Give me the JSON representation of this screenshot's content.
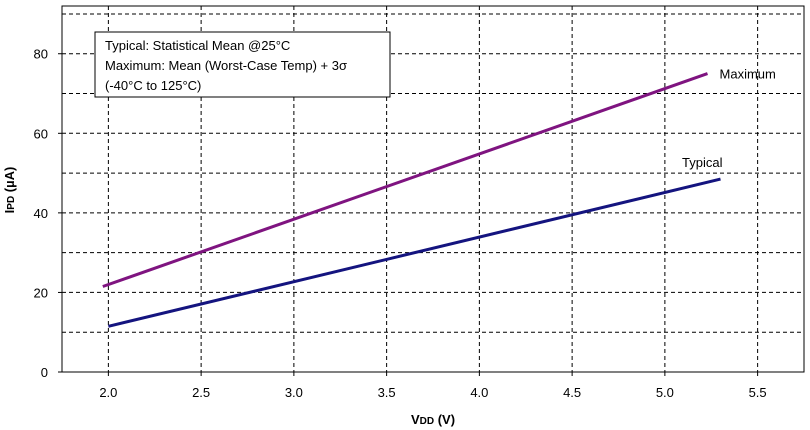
{
  "chart_data": {
    "type": "line",
    "xlabel": "VDD (V)",
    "xlabel_main": "V",
    "xlabel_sub": "DD",
    "xlabel_unit": " (V)",
    "ylabel": "IPD (µA)",
    "ylabel_main": "I",
    "ylabel_sub": "PD",
    "ylabel_unit": " (µA)",
    "xlim": [
      1.75,
      5.75
    ],
    "ylim": [
      0,
      92
    ],
    "x_ticks": [
      2.0,
      2.5,
      3.0,
      3.5,
      4.0,
      4.5,
      5.0,
      5.5
    ],
    "x_tick_labels": [
      "2.0",
      "2.5",
      "3.0",
      "3.5",
      "4.0",
      "4.5",
      "5.0",
      "5.5"
    ],
    "y_ticks": [
      0,
      20,
      40,
      60,
      80
    ],
    "y_tick_labels": [
      "0",
      "20",
      "40",
      "60",
      "80"
    ],
    "grid": true,
    "legend_lines": [
      "Typical: Statistical Mean @25°C",
      "Maximum: Mean (Worst-Case Temp) + 3σ",
      "(-40°C to 125°C)"
    ],
    "series": [
      {
        "name": "Maximum",
        "color": "#7f1480",
        "x": [
          1.97,
          5.23
        ],
        "y": [
          21.5,
          75.0
        ]
      },
      {
        "name": "Typical",
        "color": "#14147f",
        "x": [
          2.0,
          5.3
        ],
        "y": [
          11.5,
          48.5
        ]
      }
    ]
  }
}
